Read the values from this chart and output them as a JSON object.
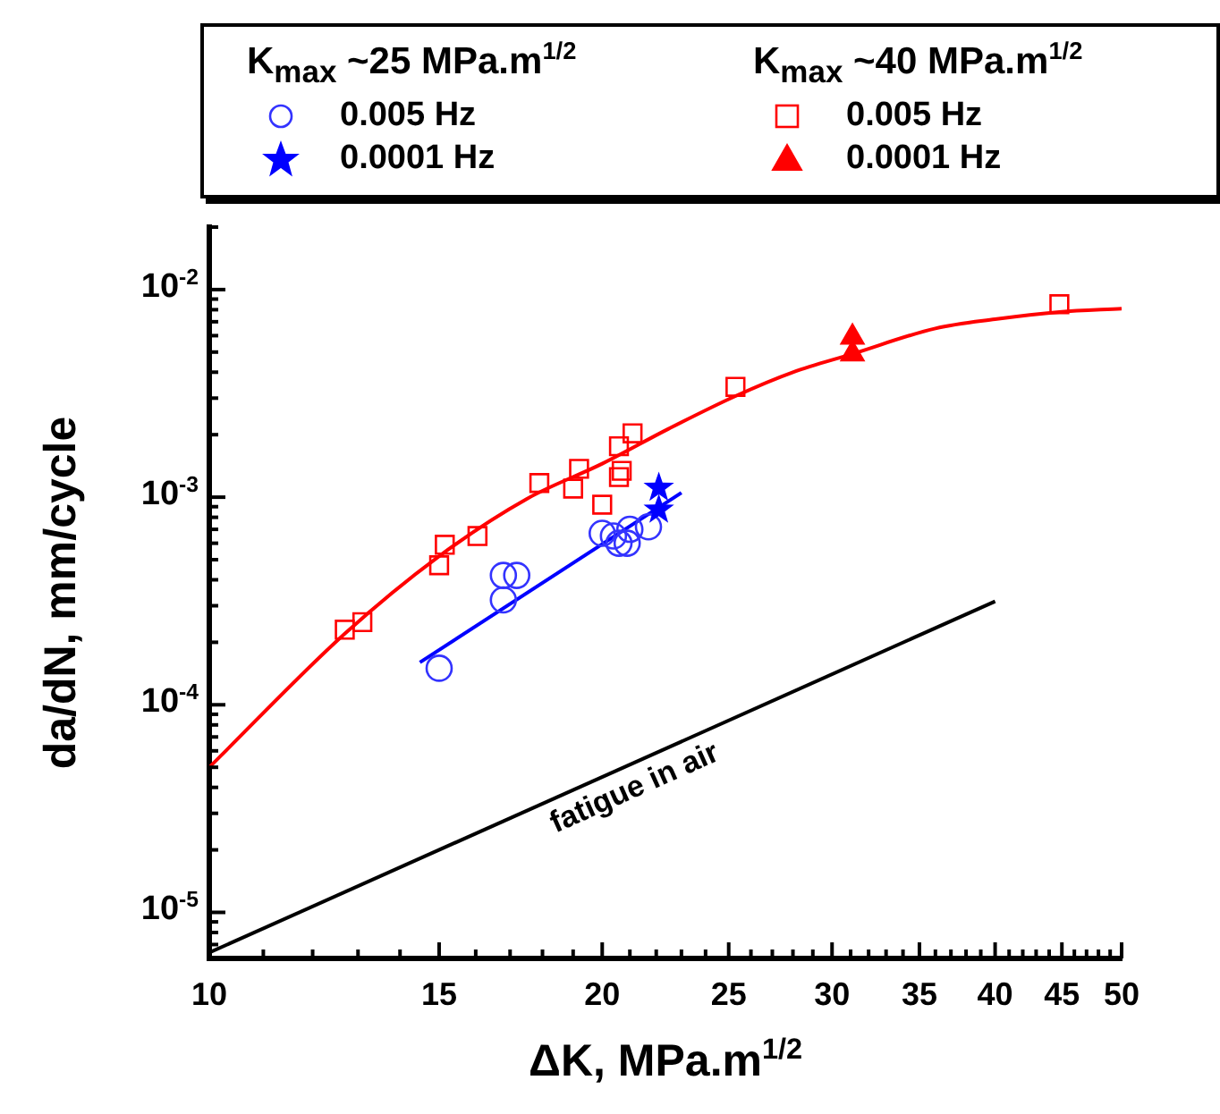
{
  "chart_data": {
    "type": "scatter",
    "xlabel": "ΔK, MPa.m$^{1/2}$",
    "ylabel": "da/dN, mm/cycle",
    "legend_title": [
      "K$_{max}$ ~25 MPa.m$^{1/2}$",
      "K$_{max}$ ~40 MPa.m$^{1/2}$"
    ],
    "legend": "top",
    "log": "xy",
    "grid": false,
    "xlim": [
      10,
      50
    ],
    "ylim": [
      6e-06,
      0.02
    ],
    "xticks": [
      10,
      {
        "value": 11,
        "label": null
      },
      {
        "value": 12,
        "label": null
      },
      {
        "value": 13,
        "label": null
      },
      {
        "value": 14,
        "label": null
      },
      15,
      {
        "value": 16,
        "label": null
      },
      {
        "value": 17,
        "label": null
      },
      {
        "value": 18,
        "label": null
      },
      {
        "value": 19,
        "label": null
      },
      20,
      {
        "value": 21,
        "label": null
      },
      {
        "value": 22,
        "label": null
      },
      {
        "value": 23,
        "label": null
      },
      {
        "value": 24,
        "label": null
      },
      25,
      {
        "value": 26,
        "label": null
      },
      {
        "value": 27,
        "label": null
      },
      {
        "value": 28,
        "label": null
      },
      {
        "value": 29,
        "label": null
      },
      30,
      {
        "value": 31,
        "label": null
      },
      {
        "value": 32,
        "label": null
      },
      {
        "value": 33,
        "label": null
      },
      {
        "value": 34,
        "label": null
      },
      35,
      {
        "value": 36,
        "label": null
      },
      {
        "value": 37,
        "label": null
      },
      {
        "value": 38,
        "label": null
      },
      {
        "value": 39,
        "label": null
      },
      40,
      {
        "value": 41,
        "label": null
      },
      {
        "value": 42,
        "label": null
      },
      {
        "value": 43,
        "label": null
      },
      {
        "value": 44,
        "label": null
      },
      45,
      {
        "value": 46,
        "label": null
      },
      {
        "value": 47,
        "label": null
      },
      {
        "value": 48,
        "label": null
      },
      {
        "value": 49,
        "label": null
      },
      50
    ],
    "yticks": [
      {
        "value": 7e-06,
        "label": null
      },
      {
        "value": 8e-06,
        "label": null
      },
      {
        "value": 9e-06,
        "label": null
      },
      {
        "value": 1e-05,
        "label": "10$^{-5}$"
      },
      {
        "value": 2e-05,
        "label": null
      },
      {
        "value": 3e-05,
        "label": null
      },
      {
        "value": 4e-05,
        "label": null
      },
      {
        "value": 5e-05,
        "label": null
      },
      {
        "value": 6e-05,
        "label": null
      },
      {
        "value": 7e-05,
        "label": null
      },
      {
        "value": 8e-05,
        "label": null
      },
      {
        "value": 9e-05,
        "label": null
      },
      {
        "value": 0.0001,
        "label": "10$^{-4}$"
      },
      {
        "value": 0.0002,
        "label": null
      },
      {
        "value": 0.0003,
        "label": null
      },
      {
        "value": 0.0004,
        "label": null
      },
      {
        "value": 0.0005,
        "label": null
      },
      {
        "value": 0.0006,
        "label": null
      },
      {
        "value": 0.0007,
        "label": null
      },
      {
        "value": 0.0008,
        "label": null
      },
      {
        "value": 0.0009,
        "label": null
      },
      {
        "value": 0.001,
        "label": "10$^{-3}$"
      },
      {
        "value": 0.002,
        "label": null
      },
      {
        "value": 0.003,
        "label": null
      },
      {
        "value": 0.004,
        "label": null
      },
      {
        "value": 0.005,
        "label": null
      },
      {
        "value": 0.006,
        "label": null
      },
      {
        "value": 0.007,
        "label": null
      },
      {
        "value": 0.008,
        "label": null
      },
      {
        "value": 0.009,
        "label": null
      },
      {
        "value": 0.01,
        "label": "10$^{-2}$"
      },
      {
        "value": 0.02,
        "label": null
      }
    ],
    "series": [
      {
        "name": "0.005 Hz",
        "color": "#3333ff",
        "marker": "circle",
        "x": [
          15.0,
          16.8,
          16.8,
          17.2,
          20.0,
          20.4,
          20.6,
          20.9,
          21.0,
          21.7
        ],
        "values": [
          0.00015,
          0.00032,
          0.00042,
          0.00042,
          0.00067,
          0.00065,
          0.0006,
          0.0006,
          0.0007,
          0.00072
        ]
      },
      {
        "name": "0.0001 Hz",
        "color": "#0000ff",
        "marker": "star",
        "x": [
          22.1,
          22.1
        ],
        "values": [
          0.00111,
          0.00087
        ]
      },
      {
        "name": "0.005 Hz",
        "color": "#ff0000",
        "marker": "square",
        "x": [
          12.7,
          13.1,
          15.0,
          15.15,
          16.05,
          17.9,
          19.0,
          19.2,
          20.0,
          20.6,
          20.6,
          20.7,
          21.1,
          25.3,
          44.8
        ],
        "values": [
          0.00023,
          0.00025,
          0.00047,
          0.00059,
          0.00065,
          0.00117,
          0.0011,
          0.00137,
          0.00092,
          0.00125,
          0.00176,
          0.00134,
          0.00203,
          0.0034,
          0.0085
        ]
      },
      {
        "name": "0.0001 Hz",
        "color": "#ff0000",
        "marker": "triangle",
        "x": [
          31.1,
          31.1
        ],
        "values": [
          0.0059,
          0.0049
        ]
      },
      {
        "type": "line",
        "color": "#0000ff",
        "marker": "none",
        "x": [
          14.5,
          23.0
        ],
        "values": [
          0.00016,
          0.00105
        ]
      },
      {
        "type": "line",
        "color": "#ff0000",
        "marker": "none",
        "x": [
          10,
          12.7,
          15,
          17.5,
          20,
          22.5,
          25.3,
          28,
          31.1,
          36,
          40,
          44.8,
          50
        ],
        "values": [
          5e-05,
          0.00022,
          0.00052,
          0.00098,
          0.00145,
          0.00214,
          0.00307,
          0.004,
          0.0049,
          0.0065,
          0.0072,
          0.0078,
          0.0081
        ]
      },
      {
        "type": "line",
        "name": "fatigue in air",
        "color": "#000000",
        "marker": "none",
        "x": [
          10,
          40
        ],
        "values": [
          6.4e-06,
          0.000315
        ]
      }
    ]
  }
}
